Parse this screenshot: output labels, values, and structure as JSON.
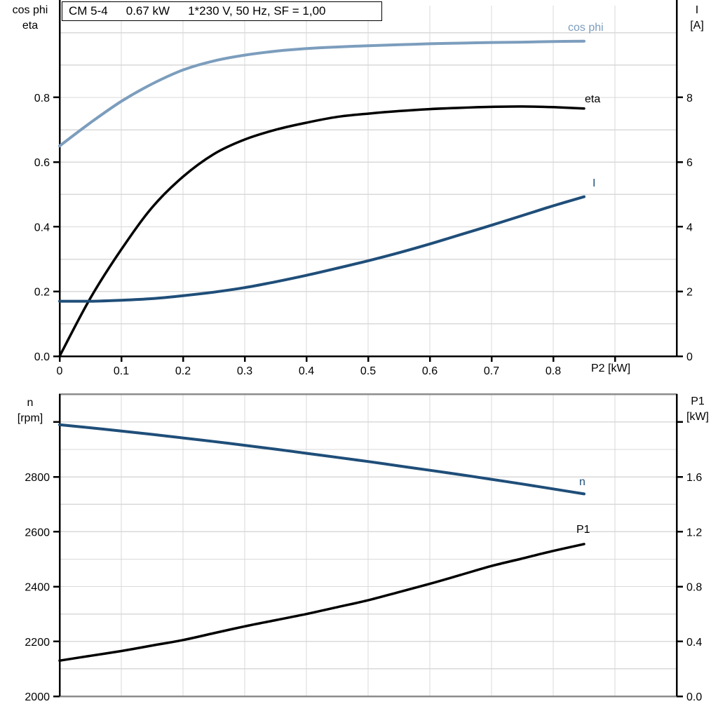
{
  "title": {
    "model": "CM 5-4",
    "power": "0.67 kW",
    "supply": "1*230 V, 50 Hz, SF = 1,00"
  },
  "colors": {
    "light_blue": "#7C9DBD",
    "dark_blue": "#1F4E79",
    "black": "#000000",
    "grid": "#D9D9D9",
    "frame": "#8C8C8C"
  },
  "chart_data": [
    {
      "type": "line",
      "name": "motor-electrical-curves",
      "xlabel": "P2 [kW]",
      "left_axis_title": [
        "cos phi",
        "eta"
      ],
      "right_axis_title": [
        "I",
        "[A]"
      ],
      "xlim": [
        0,
        1.0
      ],
      "left_ylim": [
        0,
        1.084
      ],
      "right_ylim": [
        0,
        10.84
      ],
      "x_grid": [
        0.1,
        0.2,
        0.3,
        0.4,
        0.5,
        0.6,
        0.7,
        0.8,
        0.9
      ],
      "y_grid": [
        0.1,
        0.2,
        0.3,
        0.4,
        0.5,
        0.6,
        0.7,
        0.8,
        0.9,
        1.0
      ],
      "left_ticks": {
        "values": [
          0,
          0.2,
          0.4,
          0.6,
          0.8
        ],
        "labels": [
          "0.0",
          "0.2",
          "0.4",
          "0.6",
          "0.8"
        ]
      },
      "right_ticks": {
        "values": [
          0,
          2,
          4,
          6,
          8
        ],
        "labels": [
          "0",
          "2",
          "4",
          "6",
          "8"
        ]
      },
      "x_ticks": {
        "values": [
          0,
          0.1,
          0.2,
          0.3,
          0.4,
          0.5,
          0.6,
          0.7,
          0.8,
          0.9
        ],
        "labels": [
          "0",
          "0.1",
          "0.2",
          "0.3",
          "0.4",
          "0.5",
          "0.6",
          "0.7",
          "0.8",
          ""
        ]
      },
      "x": [
        0,
        0.05,
        0.1,
        0.15,
        0.2,
        0.25,
        0.3,
        0.35,
        0.4,
        0.45,
        0.5,
        0.55,
        0.6,
        0.65,
        0.7,
        0.75,
        0.8,
        0.85
      ],
      "series": [
        {
          "name": "cos phi",
          "axis": "left",
          "color": "#7C9DBD",
          "width": 4,
          "values": [
            0.65,
            0.722,
            0.788,
            0.842,
            0.885,
            0.913,
            0.931,
            0.943,
            0.951,
            0.956,
            0.96,
            0.963,
            0.966,
            0.968,
            0.97,
            0.971,
            0.973,
            0.974
          ]
        },
        {
          "name": "eta",
          "axis": "left",
          "color": "#000000",
          "width": 3.5,
          "values": [
            0.0,
            0.18,
            0.33,
            0.46,
            0.555,
            0.625,
            0.67,
            0.7,
            0.722,
            0.74,
            0.75,
            0.758,
            0.764,
            0.768,
            0.771,
            0.772,
            0.77,
            0.766
          ]
        },
        {
          "name": "I",
          "axis": "right",
          "color": "#1F4E79",
          "width": 4,
          "values": [
            1.7,
            1.7,
            1.73,
            1.78,
            1.87,
            1.98,
            2.12,
            2.3,
            2.5,
            2.72,
            2.95,
            3.2,
            3.47,
            3.76,
            4.05,
            4.35,
            4.65,
            4.93
          ]
        }
      ]
    },
    {
      "type": "line",
      "name": "motor-speed-power-curves",
      "xlabel": "",
      "left_axis_title": [
        "n",
        "[rpm]"
      ],
      "right_axis_title": [
        "P1",
        "[kW]"
      ],
      "xlim": [
        0,
        1.0
      ],
      "left_ylim": [
        2000,
        3102
      ],
      "right_ylim": [
        0,
        2.204
      ],
      "x_grid": [
        0.1,
        0.2,
        0.3,
        0.4,
        0.5,
        0.6,
        0.7,
        0.8,
        0.9
      ],
      "y_grid": [
        2100,
        2200,
        2300,
        2400,
        2500,
        2600,
        2700,
        2800,
        2900,
        3000
      ],
      "left_ticks": {
        "values": [
          2000,
          2200,
          2400,
          2600,
          2800,
          3000
        ],
        "labels": [
          "2000",
          "2200",
          "2400",
          "2600",
          "2800",
          ""
        ]
      },
      "right_ticks": {
        "values": [
          0,
          0.4,
          0.8,
          1.2,
          1.6,
          2.0
        ],
        "labels": [
          "0.0",
          "0.4",
          "0.8",
          "1.2",
          "1.6",
          ""
        ]
      },
      "x_ticks": {
        "values": [],
        "labels": []
      },
      "x": [
        0,
        0.05,
        0.1,
        0.15,
        0.2,
        0.25,
        0.3,
        0.35,
        0.4,
        0.45,
        0.5,
        0.55,
        0.6,
        0.65,
        0.7,
        0.75,
        0.8,
        0.85
      ],
      "series": [
        {
          "name": "n",
          "axis": "left",
          "color": "#1F4E79",
          "width": 4,
          "values": [
            2990,
            2979,
            2967,
            2955,
            2942,
            2929,
            2915,
            2901,
            2886,
            2871,
            2856,
            2840,
            2824,
            2808,
            2791,
            2774,
            2756,
            2738
          ]
        },
        {
          "name": "P1",
          "axis": "right",
          "color": "#000000",
          "width": 3.5,
          "values": [
            0.26,
            0.295,
            0.33,
            0.37,
            0.41,
            0.46,
            0.51,
            0.555,
            0.6,
            0.65,
            0.7,
            0.76,
            0.82,
            0.885,
            0.95,
            1.005,
            1.06,
            1.11
          ]
        }
      ]
    }
  ]
}
